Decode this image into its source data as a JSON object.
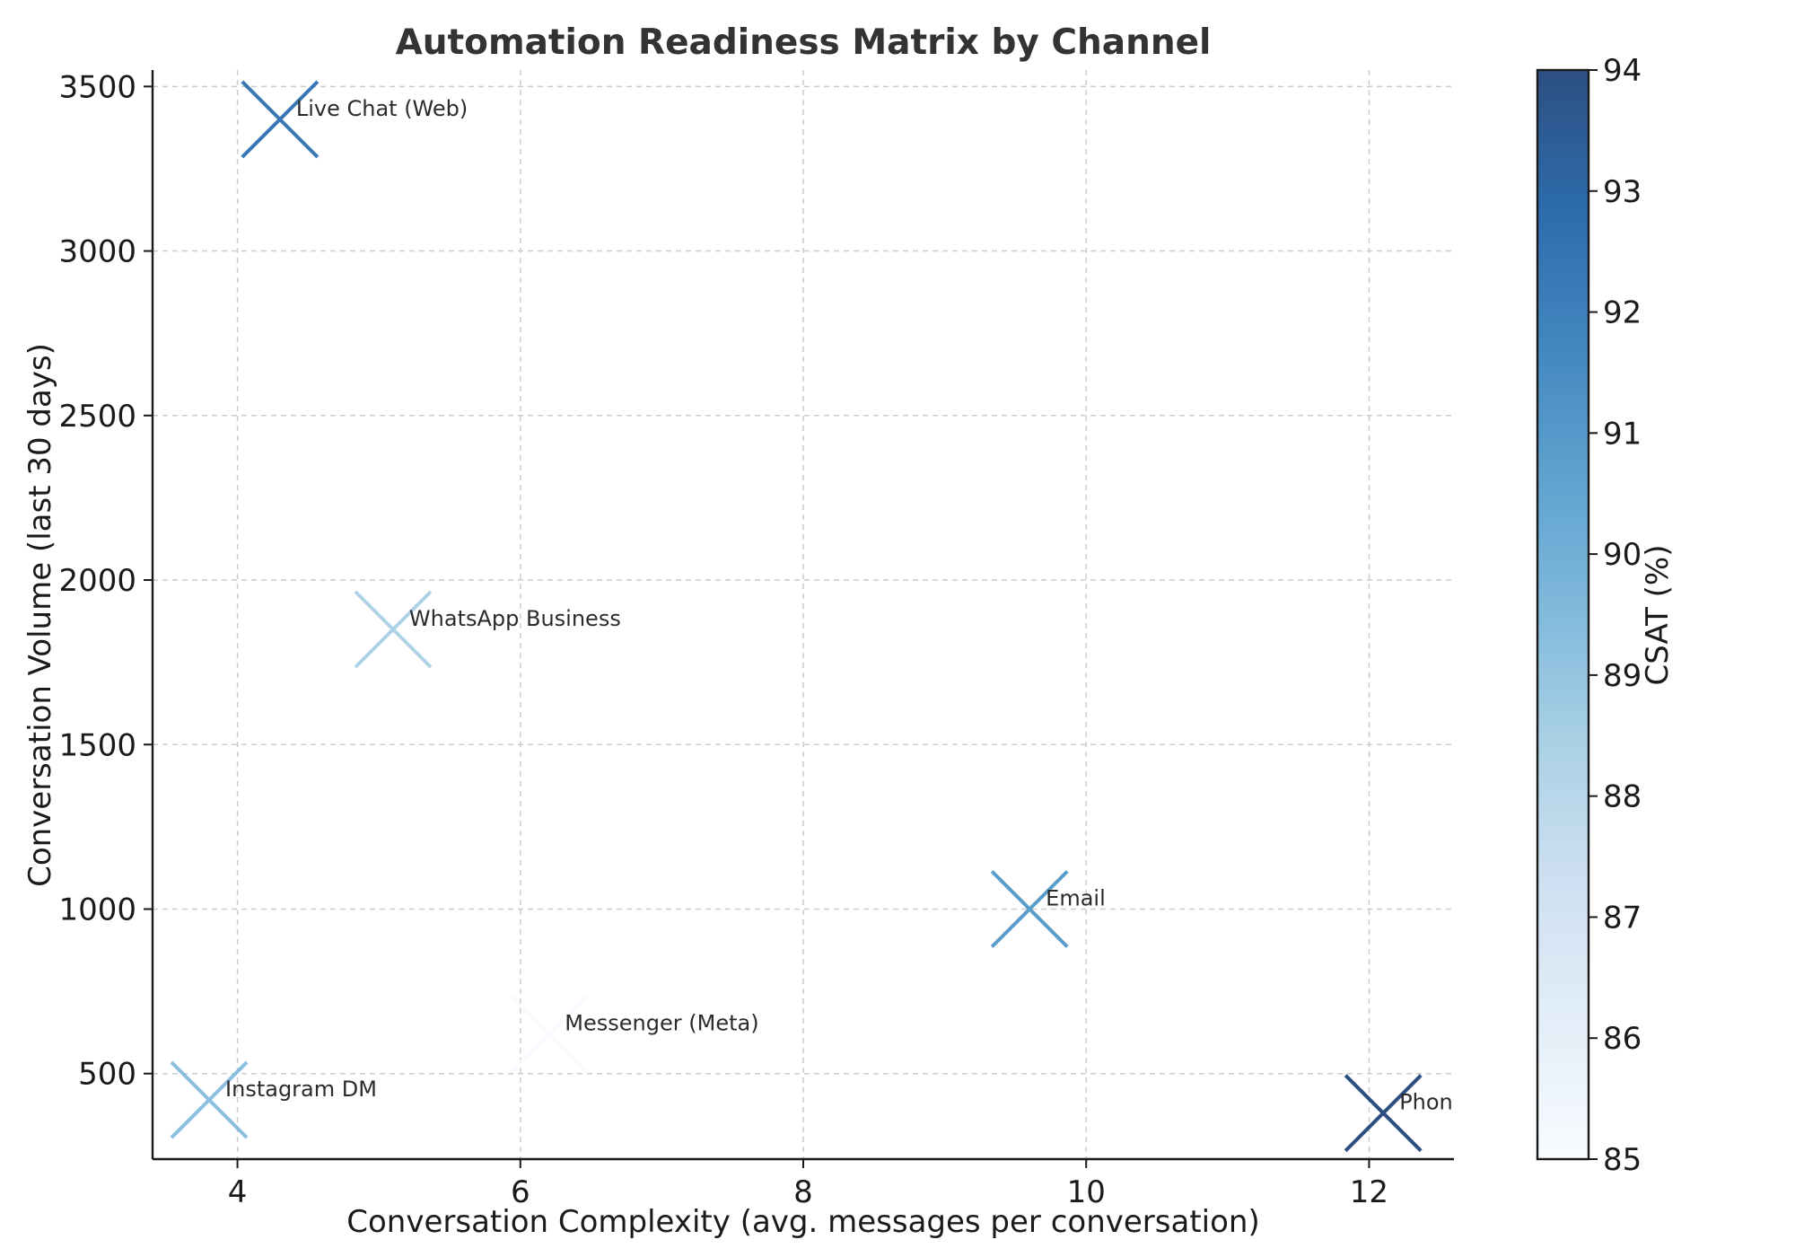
{
  "chart_data": {
    "type": "scatter",
    "title": "Automation Readiness Matrix by Channel",
    "xlabel": "Conversation Complexity (avg. messages per conversation)",
    "ylabel": "Conversation Volume (last 30 days)",
    "xlim": [
      3.4,
      12.6
    ],
    "ylim": [
      240,
      3550
    ],
    "x_ticks": [
      4,
      6,
      8,
      10,
      12
    ],
    "y_ticks": [
      500,
      1000,
      1500,
      2000,
      2500,
      3000,
      3500
    ],
    "grid": true,
    "marker": "x",
    "colorbar": {
      "label": "CSAT (%)",
      "min": 85,
      "max": 94,
      "ticks": [
        85,
        86,
        87,
        88,
        89,
        90,
        91,
        92,
        93,
        94
      ],
      "colormap": "Blues",
      "colors": [
        "#f7fbff",
        "#deebf7",
        "#c6dbef",
        "#9ecae1",
        "#6baed6",
        "#4292c6",
        "#2171b5",
        "#08519c",
        "#08306b"
      ]
    },
    "points": [
      {
        "label": "Live Chat (Web)",
        "x": 4.3,
        "y": 3400,
        "csat": 92.3
      },
      {
        "label": "WhatsApp Business",
        "x": 5.1,
        "y": 1850,
        "csat": 88.3
      },
      {
        "label": "Email",
        "x": 9.6,
        "y": 1000,
        "csat": 90.8
      },
      {
        "label": "Messenger (Meta)",
        "x": 6.2,
        "y": 620,
        "csat": 85.0
      },
      {
        "label": "Instagram DM",
        "x": 3.8,
        "y": 420,
        "csat": 89.2
      },
      {
        "label": "Phone (Voice)",
        "x": 12.1,
        "y": 380,
        "csat": 94.0
      }
    ]
  }
}
